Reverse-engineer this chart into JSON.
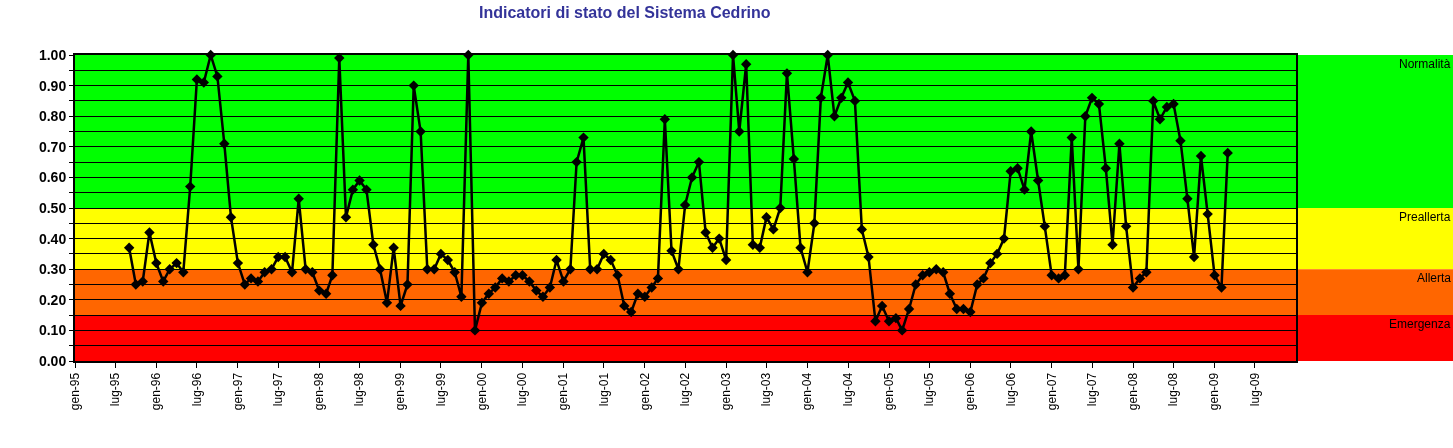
{
  "chart_data": {
    "type": "line",
    "title": "Indicatori di stato del Sistema Cedrino",
    "x": [
      "1995-09",
      "1995-10",
      "1995-11",
      "1995-12",
      "1996-01",
      "1996-02",
      "1996-03",
      "1996-04",
      "1996-05",
      "1996-06",
      "1996-07",
      "1996-08",
      "1996-09",
      "1996-10",
      "1996-11",
      "1996-12",
      "1997-01",
      "1997-02",
      "1997-03",
      "1997-04",
      "1997-05",
      "1997-06",
      "1997-07",
      "1997-08",
      "1997-09",
      "1997-10",
      "1997-11",
      "1997-12",
      "1998-01",
      "1998-02",
      "1998-03",
      "1998-04",
      "1998-05",
      "1998-06",
      "1998-07",
      "1998-08",
      "1998-09",
      "1998-10",
      "1998-11",
      "1998-12",
      "1999-01",
      "1999-02",
      "1999-03",
      "1999-04",
      "1999-05",
      "1999-06",
      "1999-07",
      "1999-08",
      "1999-09",
      "1999-10",
      "1999-11",
      "1999-12",
      "2000-01",
      "2000-02",
      "2000-03",
      "2000-04",
      "2000-05",
      "2000-06",
      "2000-07",
      "2000-08",
      "2000-09",
      "2000-10",
      "2000-11",
      "2000-12",
      "2001-01",
      "2001-02",
      "2001-03",
      "2001-04",
      "2001-05",
      "2001-06",
      "2001-07",
      "2001-08",
      "2001-09",
      "2001-10",
      "2001-11",
      "2001-12",
      "2002-01",
      "2002-02",
      "2002-03",
      "2002-04",
      "2002-05",
      "2002-06",
      "2002-07",
      "2002-08",
      "2002-09",
      "2002-10",
      "2002-11",
      "2002-12",
      "2003-01",
      "2003-02",
      "2003-03",
      "2003-04",
      "2003-05",
      "2003-06",
      "2003-07",
      "2003-08",
      "2003-09",
      "2003-10",
      "2003-11",
      "2003-12",
      "2004-01",
      "2004-02",
      "2004-03",
      "2004-04",
      "2004-05",
      "2004-06",
      "2004-07",
      "2004-08",
      "2004-09",
      "2004-10",
      "2004-11",
      "2004-12",
      "2005-01",
      "2005-02",
      "2005-03",
      "2005-04",
      "2005-05",
      "2005-06",
      "2005-07",
      "2005-08",
      "2005-09",
      "2005-10",
      "2005-11",
      "2005-12",
      "2006-01",
      "2006-02",
      "2006-03",
      "2006-04",
      "2006-05",
      "2006-06",
      "2006-07",
      "2006-08",
      "2006-09",
      "2006-10",
      "2006-11",
      "2006-12",
      "2007-01",
      "2007-02",
      "2007-03",
      "2007-04",
      "2007-05",
      "2007-06",
      "2007-07",
      "2007-08",
      "2007-09",
      "2007-10",
      "2007-11",
      "2007-12",
      "2008-01",
      "2008-02",
      "2008-03",
      "2008-04",
      "2008-05",
      "2008-06",
      "2008-07",
      "2008-08",
      "2008-09",
      "2008-10",
      "2008-11",
      "2008-12",
      "2009-01",
      "2009-02",
      "2009-03"
    ],
    "series": [
      {
        "color": "#000000",
        "values": [
          0.37,
          0.25,
          0.26,
          0.42,
          0.32,
          0.26,
          0.3,
          0.32,
          0.29,
          0.57,
          0.92,
          0.91,
          1.0,
          0.93,
          0.71,
          0.47,
          0.32,
          0.25,
          0.27,
          0.26,
          0.29,
          0.3,
          0.34,
          0.34,
          0.29,
          0.53,
          0.3,
          0.29,
          0.23,
          0.22,
          0.28,
          0.99,
          0.47,
          0.56,
          0.59,
          0.56,
          0.38,
          0.3,
          0.19,
          0.37,
          0.18,
          0.25,
          0.9,
          0.75,
          0.3,
          0.3,
          0.35,
          0.33,
          0.29,
          0.21,
          1.0,
          0.1,
          0.19,
          0.22,
          0.24,
          0.27,
          0.26,
          0.28,
          0.28,
          0.26,
          0.23,
          0.21,
          0.24,
          0.33,
          0.26,
          0.3,
          0.65,
          0.73,
          0.3,
          0.3,
          0.35,
          0.33,
          0.28,
          0.18,
          0.16,
          0.22,
          0.21,
          0.24,
          0.27,
          0.79,
          0.36,
          0.3,
          0.51,
          0.6,
          0.65,
          0.42,
          0.37,
          0.4,
          0.33,
          1.0,
          0.75,
          0.97,
          0.38,
          0.37,
          0.47,
          0.43,
          0.5,
          0.94,
          0.66,
          0.37,
          0.29,
          0.45,
          0.86,
          1.0,
          0.8,
          0.86,
          0.91,
          0.85,
          0.43,
          0.34,
          0.13,
          0.18,
          0.13,
          0.14,
          0.1,
          0.17,
          0.25,
          0.28,
          0.29,
          0.3,
          0.29,
          0.22,
          0.17,
          0.17,
          0.16,
          0.25,
          0.27,
          0.32,
          0.35,
          0.4,
          0.62,
          0.63,
          0.56,
          0.75,
          0.59,
          0.44,
          0.28,
          0.27,
          0.28,
          0.73,
          0.3,
          0.8,
          0.86,
          0.84,
          0.63,
          0.38,
          0.71,
          0.44,
          0.24,
          0.27,
          0.29,
          0.85,
          0.79,
          0.83,
          0.84,
          0.72,
          0.53,
          0.34,
          0.67,
          0.48,
          0.28,
          0.24,
          0.68
        ]
      }
    ],
    "xlim": [
      "1995-01",
      "2010-01"
    ],
    "xticks": [
      {
        "value": "1995-01",
        "label": "gen-95"
      },
      {
        "value": "1995-07",
        "label": "lug-95"
      },
      {
        "value": "1996-01",
        "label": "gen-96"
      },
      {
        "value": "1996-07",
        "label": "lug-96"
      },
      {
        "value": "1997-01",
        "label": "gen-97"
      },
      {
        "value": "1997-07",
        "label": "lug-97"
      },
      {
        "value": "1998-01",
        "label": "gen-98"
      },
      {
        "value": "1998-07",
        "label": "lug-98"
      },
      {
        "value": "1999-01",
        "label": "gen-99"
      },
      {
        "value": "1999-07",
        "label": "lug-99"
      },
      {
        "value": "2000-01",
        "label": "gen-00"
      },
      {
        "value": "2000-07",
        "label": "lug-00"
      },
      {
        "value": "2001-01",
        "label": "gen-01"
      },
      {
        "value": "2001-07",
        "label": "lug-01"
      },
      {
        "value": "2002-01",
        "label": "gen-02"
      },
      {
        "value": "2002-07",
        "label": "lug-02"
      },
      {
        "value": "2003-01",
        "label": "gen-03"
      },
      {
        "value": "2003-07",
        "label": "lug-03"
      },
      {
        "value": "2004-01",
        "label": "gen-04"
      },
      {
        "value": "2004-07",
        "label": "lug-04"
      },
      {
        "value": "2005-01",
        "label": "gen-05"
      },
      {
        "value": "2005-07",
        "label": "lug-05"
      },
      {
        "value": "2006-01",
        "label": "gen-06"
      },
      {
        "value": "2006-07",
        "label": "lug-06"
      },
      {
        "value": "2007-01",
        "label": "gen-07"
      },
      {
        "value": "2007-07",
        "label": "lug-07"
      },
      {
        "value": "2008-01",
        "label": "gen-08"
      },
      {
        "value": "2008-07",
        "label": "lug-08"
      },
      {
        "value": "2009-01",
        "label": "gen-09"
      },
      {
        "value": "2009-07",
        "label": "lug-09"
      }
    ],
    "ylim": [
      0,
      1
    ],
    "yticks": [
      {
        "value": 0,
        "label": "0.00"
      },
      {
        "value": 0.05,
        "label": null
      },
      {
        "value": 0.1,
        "label": "0.10"
      },
      {
        "value": 0.15,
        "label": null
      },
      {
        "value": 0.2,
        "label": "0.20"
      },
      {
        "value": 0.25,
        "label": null
      },
      {
        "value": 0.3,
        "label": "0.30"
      },
      {
        "value": 0.35,
        "label": null
      },
      {
        "value": 0.4,
        "label": "0.40"
      },
      {
        "value": 0.45,
        "label": null
      },
      {
        "value": 0.5,
        "label": "0.50"
      },
      {
        "value": 0.55,
        "label": null
      },
      {
        "value": 0.6,
        "label": "0.60"
      },
      {
        "value": 0.65,
        "label": null
      },
      {
        "value": 0.7,
        "label": "0.70"
      },
      {
        "value": 0.75,
        "label": null
      },
      {
        "value": 0.8,
        "label": "0.80"
      },
      {
        "value": 0.85,
        "label": null
      },
      {
        "value": 0.9,
        "label": "0.90"
      },
      {
        "value": 0.95,
        "label": null
      },
      {
        "value": 1,
        "label": "1.00"
      }
    ],
    "grid": "y",
    "marker": "diamond",
    "line_style": "solid",
    "legend": false,
    "bands": [
      {
        "axis": "y",
        "from": 0.5,
        "to": 1,
        "label": "Normalità",
        "color": "#00ff00"
      },
      {
        "axis": "y",
        "from": 0.3,
        "to": 0.5,
        "label": "Preallerta",
        "color": "#ffff00"
      },
      {
        "axis": "y",
        "from": 0.15,
        "to": 0.3,
        "label": "Allerta",
        "color": "#ff6600"
      },
      {
        "axis": "y",
        "from": 0,
        "to": 0.15,
        "label": "Emergenza",
        "color": "#ff0000"
      }
    ]
  }
}
